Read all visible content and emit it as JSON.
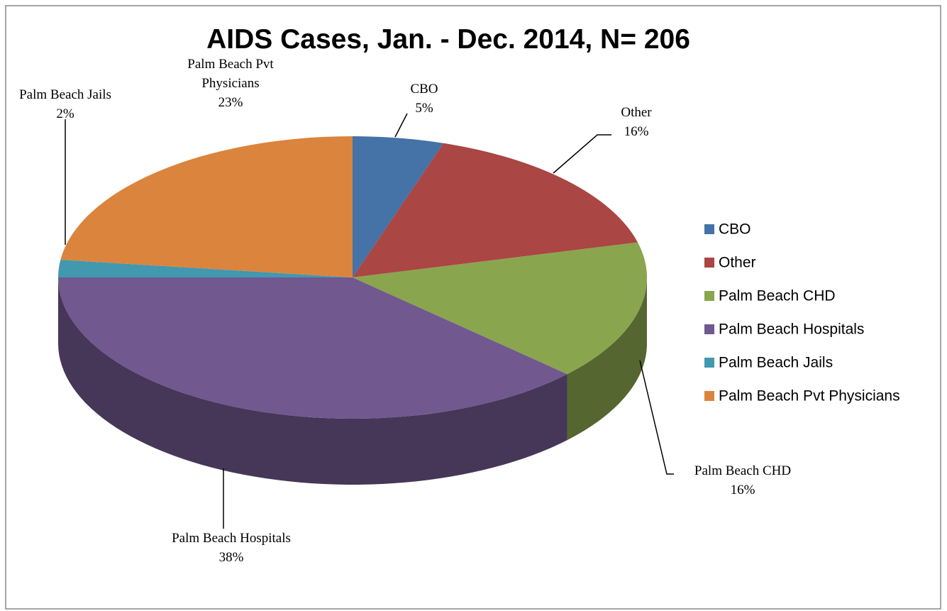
{
  "chart_data": {
    "type": "pie3d",
    "title": "AIDS Cases, Jan. - Dec. 2014, N= 206",
    "categories": [
      "CBO",
      "Other",
      "Palm Beach CHD",
      "Palm Beach Hospitals",
      "Palm Beach Jails",
      "Palm Beach Pvt Physicians"
    ],
    "values": [
      5,
      16,
      16,
      38,
      2,
      23
    ],
    "value_labels": [
      "5%",
      "16%",
      "16%",
      "38%",
      "2%",
      "23%"
    ],
    "colors": [
      "#4572a7",
      "#aa4643",
      "#89a54e",
      "#71588f",
      "#4198af",
      "#db843d"
    ],
    "legend": "right"
  }
}
